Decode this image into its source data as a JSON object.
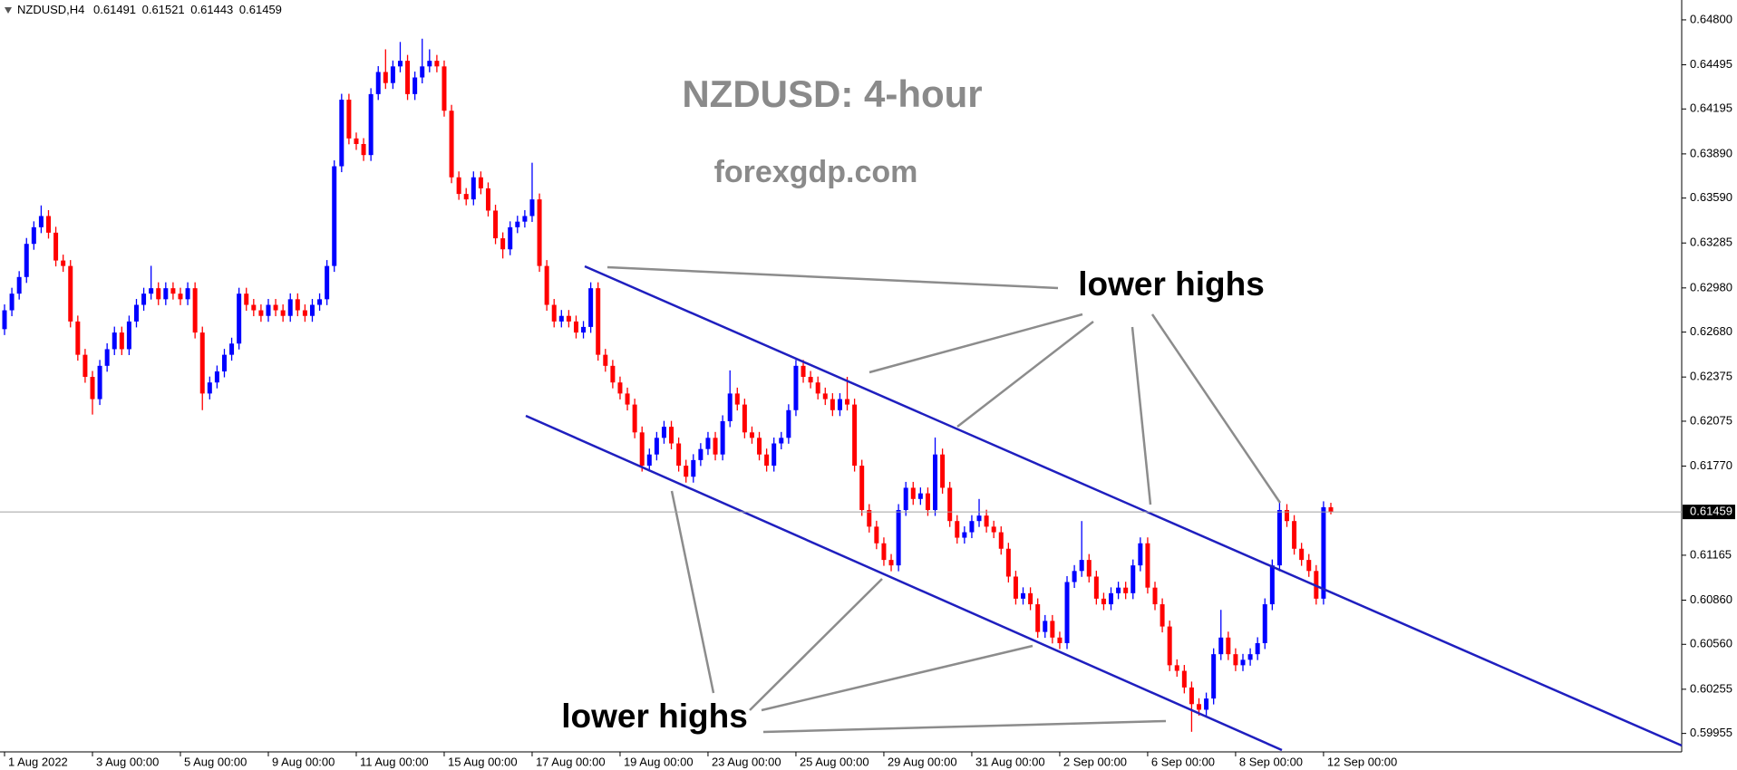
{
  "chart_data": {
    "type": "candlestick",
    "symbol": "NZDUSD,H4",
    "title": "NZDUSD: 4-hour",
    "subtitle": "forexgdp.com",
    "annotations": [
      "lower highs",
      "lower highs"
    ],
    "up_color": "#0000ff",
    "down_color": "#ff0000",
    "ylim": [
      0.59842,
      0.64898
    ],
    "yticks": [
      {
        "value": 0.648,
        "label": "0.64800"
      },
      {
        "value": 0.64495,
        "label": "0.64495"
      },
      {
        "value": 0.64195,
        "label": "0.64195"
      },
      {
        "value": 0.6389,
        "label": "0.63890"
      },
      {
        "value": 0.6359,
        "label": "0.63590"
      },
      {
        "value": 0.63285,
        "label": "0.63285"
      },
      {
        "value": 0.6298,
        "label": "0.62980"
      },
      {
        "value": 0.6268,
        "label": "0.62680"
      },
      {
        "value": 0.62375,
        "label": "0.62375"
      },
      {
        "value": 0.62075,
        "label": "0.62075"
      },
      {
        "value": 0.6177,
        "label": "0.61770"
      },
      {
        "value": 0.61165,
        "label": "0.61165"
      },
      {
        "value": 0.6086,
        "label": "0.60860"
      },
      {
        "value": 0.6056,
        "label": "0.60560"
      },
      {
        "value": 0.60255,
        "label": "0.60255"
      },
      {
        "value": 0.59955,
        "label": "0.59955"
      }
    ],
    "categories": [
      "1 Aug 2022",
      null,
      null,
      null,
      null,
      null,
      null,
      null,
      null,
      null,
      null,
      null,
      "3 Aug 00:00",
      null,
      null,
      null,
      null,
      null,
      null,
      null,
      null,
      null,
      null,
      null,
      "5 Aug 00:00",
      null,
      null,
      null,
      null,
      null,
      null,
      null,
      null,
      null,
      null,
      null,
      "9 Aug 00:00",
      null,
      null,
      null,
      null,
      null,
      null,
      null,
      null,
      null,
      null,
      null,
      "11 Aug 00:00",
      null,
      null,
      null,
      null,
      null,
      null,
      null,
      null,
      null,
      null,
      null,
      "15 Aug 00:00",
      null,
      null,
      null,
      null,
      null,
      null,
      null,
      null,
      null,
      null,
      null,
      "17 Aug 00:00",
      null,
      null,
      null,
      null,
      null,
      null,
      null,
      null,
      null,
      null,
      null,
      "19 Aug 00:00",
      null,
      null,
      null,
      null,
      null,
      null,
      null,
      null,
      null,
      null,
      null,
      "23 Aug 00:00",
      null,
      null,
      null,
      null,
      null,
      null,
      null,
      null,
      null,
      null,
      null,
      "25 Aug 00:00",
      null,
      null,
      null,
      null,
      null,
      null,
      null,
      null,
      null,
      null,
      null,
      "29 Aug 00:00",
      null,
      null,
      null,
      null,
      null,
      null,
      null,
      null,
      null,
      null,
      null,
      "31 Aug 00:00",
      null,
      null,
      null,
      null,
      null,
      null,
      null,
      null,
      null,
      null,
      null,
      "2 Sep 00:00",
      null,
      null,
      null,
      null,
      null,
      null,
      null,
      null,
      null,
      null,
      null,
      "6 Sep 00:00",
      null,
      null,
      null,
      null,
      null,
      null,
      null,
      null,
      null,
      null,
      null,
      "8 Sep 00:00",
      null,
      null,
      null,
      null,
      null,
      null,
      null,
      null,
      null,
      null,
      null,
      "12 Sep 00:00",
      null
    ],
    "open": [
      0.627,
      0.62828,
      0.62941,
      0.63054,
      0.63279,
      0.63392,
      0.63468,
      0.63355,
      0.63166,
      0.63129,
      0.62752,
      0.62526,
      0.62376,
      0.62225,
      0.62451,
      0.62564,
      0.62677,
      0.62564,
      0.62752,
      0.62865,
      0.62941,
      0.62978,
      0.62903,
      0.62978,
      0.62941,
      0.62903,
      0.62978,
      0.62677,
      0.62263,
      0.62338,
      0.62413,
      0.62526,
      0.62602,
      0.62941,
      0.62865,
      0.62828,
      0.6279,
      0.62865,
      0.62828,
      0.6279,
      0.62903,
      0.62828,
      0.6279,
      0.62865,
      0.62903,
      0.63129,
      0.63806,
      0.64258,
      0.63995,
      0.63957,
      0.63882,
      0.64296,
      0.64446,
      0.64371,
      0.64484,
      0.64522,
      0.64296,
      0.64409,
      0.64484,
      0.64522,
      0.64484,
      0.64183,
      0.63731,
      0.63618,
      0.63581,
      0.63731,
      0.63656,
      0.63505,
      0.63317,
      0.63242,
      0.63392,
      0.6343,
      0.63468,
      0.63581,
      0.63129,
      0.62865,
      0.62752,
      0.6279,
      0.62752,
      0.62677,
      0.62715,
      0.62978,
      0.62526,
      0.62451,
      0.62338,
      0.62263,
      0.62188,
      0.61999,
      0.61773,
      0.61849,
      0.61962,
      0.62037,
      0.61924,
      0.61773,
      0.61698,
      0.61811,
      0.61886,
      0.61962,
      0.61849,
      0.62075,
      0.62263,
      0.62188,
      0.61999,
      0.61962,
      0.61849,
      0.61773,
      0.61924,
      0.61962,
      0.6215,
      0.62451,
      0.62376,
      0.62338,
      0.62263,
      0.62225,
      0.6215,
      0.62225,
      0.62188,
      0.61773,
      0.61472,
      0.61359,
      0.61246,
      0.61133,
      0.61096,
      0.61472,
      0.61623,
      0.61547,
      0.61585,
      0.61472,
      0.61849,
      0.61623,
      0.61397,
      0.61284,
      0.61321,
      0.61397,
      0.61434,
      0.61359,
      0.61321,
      0.61209,
      0.6102,
      0.6087,
      0.60907,
      0.60832,
      0.60644,
      0.60719,
      0.60606,
      0.60568,
      0.60983,
      0.61058,
      0.61133,
      0.6102,
      0.6087,
      0.60832,
      0.60907,
      0.60945,
      0.60907,
      0.61096,
      0.61246,
      0.60945,
      0.60832,
      0.60681,
      0.60418,
      0.6038,
      0.60267,
      0.60154,
      0.60116,
      0.60192,
      0.60493,
      0.60606,
      0.60493,
      0.60418,
      0.60455,
      0.60493,
      0.60568,
      0.60832,
      0.61096,
      0.61472,
      0.61397,
      0.61209,
      0.61133,
      0.61058,
      0.6087,
      0.61491
    ],
    "high": [
      0.62868,
      0.62981,
      0.63094,
      0.63319,
      0.63432,
      0.6354,
      0.63508,
      0.63395,
      0.63206,
      0.63169,
      0.62792,
      0.62566,
      0.62416,
      0.62491,
      0.62604,
      0.62717,
      0.62717,
      0.62792,
      0.62905,
      0.62981,
      0.6313,
      0.63018,
      0.63018,
      0.63018,
      0.62981,
      0.63018,
      0.63018,
      0.62717,
      0.62378,
      0.62453,
      0.62566,
      0.62642,
      0.62981,
      0.62981,
      0.62905,
      0.62868,
      0.62905,
      0.62905,
      0.62868,
      0.62943,
      0.62943,
      0.62868,
      0.62905,
      0.62943,
      0.63169,
      0.63846,
      0.64298,
      0.64298,
      0.64035,
      0.63997,
      0.64336,
      0.64486,
      0.646,
      0.64524,
      0.6465,
      0.64562,
      0.64449,
      0.64672,
      0.646,
      0.64562,
      0.64524,
      0.64223,
      0.63771,
      0.63658,
      0.63771,
      0.63771,
      0.63696,
      0.63545,
      0.63357,
      0.63432,
      0.6347,
      0.63508,
      0.6383,
      0.63621,
      0.63169,
      0.62905,
      0.6283,
      0.6283,
      0.62792,
      0.62755,
      0.63018,
      0.63018,
      0.62566,
      0.62491,
      0.62378,
      0.62303,
      0.62228,
      0.62039,
      0.61889,
      0.62002,
      0.62077,
      0.62077,
      0.61964,
      0.61813,
      0.61851,
      0.61926,
      0.62002,
      0.62002,
      0.62115,
      0.6242,
      0.62303,
      0.62228,
      0.62039,
      0.62002,
      0.61889,
      0.61964,
      0.62002,
      0.6219,
      0.62491,
      0.62491,
      0.62416,
      0.62378,
      0.62303,
      0.62265,
      0.62265,
      0.62376,
      0.62228,
      0.61813,
      0.61512,
      0.61399,
      0.61286,
      0.61173,
      0.61512,
      0.61663,
      0.61663,
      0.61625,
      0.61625,
      0.61964,
      0.61889,
      0.61663,
      0.61437,
      0.61361,
      0.61437,
      0.61547,
      0.61474,
      0.61399,
      0.61361,
      0.61249,
      0.6106,
      0.60947,
      0.60947,
      0.60872,
      0.60759,
      0.60759,
      0.60646,
      0.61023,
      0.61098,
      0.61397,
      0.61173,
      0.6106,
      0.6091,
      0.60947,
      0.60985,
      0.60985,
      0.61136,
      0.61286,
      0.61286,
      0.60985,
      0.60872,
      0.60721,
      0.60458,
      0.6042,
      0.60307,
      0.60194,
      0.60232,
      0.60533,
      0.60794,
      0.60646,
      0.60533,
      0.60495,
      0.60533,
      0.60608,
      0.60872,
      0.61136,
      0.6153,
      0.61512,
      0.61437,
      0.61249,
      0.61173,
      0.61098,
      0.61531,
      0.61521
    ],
    "low": [
      0.6266,
      0.62788,
      0.62901,
      0.63014,
      0.63239,
      0.63352,
      0.63315,
      0.63126,
      0.63089,
      0.62712,
      0.62486,
      0.62336,
      0.6212,
      0.62185,
      0.62411,
      0.62524,
      0.62524,
      0.62524,
      0.62712,
      0.62825,
      0.62901,
      0.62863,
      0.62863,
      0.62901,
      0.62863,
      0.62863,
      0.62637,
      0.6215,
      0.62223,
      0.62298,
      0.62373,
      0.62486,
      0.62562,
      0.62825,
      0.62788,
      0.6275,
      0.6275,
      0.62788,
      0.6275,
      0.6275,
      0.62788,
      0.6275,
      0.6275,
      0.62825,
      0.62863,
      0.63089,
      0.63766,
      0.63955,
      0.63917,
      0.63842,
      0.63842,
      0.64256,
      0.64331,
      0.64331,
      0.64444,
      0.64256,
      0.64256,
      0.64369,
      0.64444,
      0.64444,
      0.64143,
      0.63691,
      0.63578,
      0.63541,
      0.63541,
      0.63616,
      0.63465,
      0.63277,
      0.6318,
      0.63202,
      0.63352,
      0.6339,
      0.63428,
      0.63089,
      0.62825,
      0.62712,
      0.62712,
      0.62712,
      0.62637,
      0.62637,
      0.62675,
      0.62486,
      0.62411,
      0.62298,
      0.62223,
      0.62148,
      0.61959,
      0.61733,
      0.61733,
      0.61809,
      0.61922,
      0.61884,
      0.61733,
      0.61658,
      0.61658,
      0.61771,
      0.61846,
      0.61809,
      0.61809,
      0.62035,
      0.62148,
      0.61959,
      0.61922,
      0.61809,
      0.61733,
      0.61733,
      0.61884,
      0.61922,
      0.6211,
      0.62336,
      0.62298,
      0.62223,
      0.62185,
      0.6211,
      0.6211,
      0.62148,
      0.61733,
      0.61432,
      0.61319,
      0.61206,
      0.61093,
      0.61056,
      0.61056,
      0.61432,
      0.61507,
      0.61507,
      0.61432,
      0.61432,
      0.61583,
      0.61357,
      0.61244,
      0.61244,
      0.61281,
      0.61357,
      0.61319,
      0.61281,
      0.61169,
      0.6098,
      0.6083,
      0.6083,
      0.60792,
      0.60604,
      0.60604,
      0.60566,
      0.60528,
      0.60528,
      0.60943,
      0.61018,
      0.6098,
      0.6083,
      0.60792,
      0.60792,
      0.60867,
      0.60867,
      0.60867,
      0.61056,
      0.60905,
      0.60792,
      0.60641,
      0.60378,
      0.6034,
      0.60227,
      0.59966,
      0.60076,
      0.60076,
      0.60152,
      0.60453,
      0.60453,
      0.60378,
      0.60378,
      0.60415,
      0.60453,
      0.60528,
      0.60792,
      0.61056,
      0.61357,
      0.61169,
      0.61093,
      0.61018,
      0.6083,
      0.6083,
      0.61443
    ],
    "close": [
      0.62828,
      0.62941,
      0.63054,
      0.63279,
      0.63392,
      0.63468,
      0.63355,
      0.63166,
      0.63129,
      0.62752,
      0.62526,
      0.62376,
      0.62225,
      0.62451,
      0.62564,
      0.62677,
      0.62564,
      0.62752,
      0.62865,
      0.62941,
      0.62978,
      0.62903,
      0.62978,
      0.62941,
      0.62903,
      0.62978,
      0.62677,
      0.62263,
      0.62338,
      0.62413,
      0.62526,
      0.62602,
      0.62941,
      0.62865,
      0.62828,
      0.6279,
      0.62865,
      0.62828,
      0.6279,
      0.62903,
      0.62828,
      0.6279,
      0.62865,
      0.62903,
      0.63129,
      0.63806,
      0.64258,
      0.63995,
      0.63957,
      0.63882,
      0.64296,
      0.64446,
      0.64371,
      0.64484,
      0.64522,
      0.64296,
      0.64409,
      0.64484,
      0.64522,
      0.64484,
      0.64183,
      0.63731,
      0.63618,
      0.63581,
      0.63731,
      0.63656,
      0.63505,
      0.63317,
      0.63242,
      0.63392,
      0.6343,
      0.63468,
      0.63581,
      0.63129,
      0.62865,
      0.62752,
      0.6279,
      0.62752,
      0.62677,
      0.62715,
      0.62978,
      0.62526,
      0.62451,
      0.62338,
      0.62263,
      0.62188,
      0.61999,
      0.61773,
      0.61849,
      0.61962,
      0.62037,
      0.61924,
      0.61773,
      0.61698,
      0.61811,
      0.61886,
      0.61962,
      0.61849,
      0.62075,
      0.62263,
      0.62188,
      0.61999,
      0.61962,
      0.61849,
      0.61773,
      0.61924,
      0.61962,
      0.6215,
      0.62451,
      0.62376,
      0.62338,
      0.62263,
      0.62225,
      0.6215,
      0.62225,
      0.62188,
      0.61773,
      0.61472,
      0.61359,
      0.61246,
      0.61133,
      0.61096,
      0.61472,
      0.61623,
      0.61547,
      0.61585,
      0.61472,
      0.61849,
      0.61623,
      0.61397,
      0.61284,
      0.61321,
      0.61397,
      0.61434,
      0.61359,
      0.61321,
      0.61209,
      0.6102,
      0.6087,
      0.60907,
      0.60832,
      0.60644,
      0.60719,
      0.60606,
      0.60568,
      0.60983,
      0.61058,
      0.61133,
      0.6102,
      0.6087,
      0.60832,
      0.60907,
      0.60945,
      0.60907,
      0.61096,
      0.61246,
      0.60945,
      0.60832,
      0.60681,
      0.60418,
      0.6038,
      0.60267,
      0.60154,
      0.60116,
      0.60192,
      0.60493,
      0.60606,
      0.60493,
      0.60418,
      0.60455,
      0.60493,
      0.60568,
      0.60832,
      0.61096,
      0.61472,
      0.61397,
      0.61209,
      0.61133,
      0.61058,
      0.6087,
      0.61491,
      0.61459
    ]
  }
}
